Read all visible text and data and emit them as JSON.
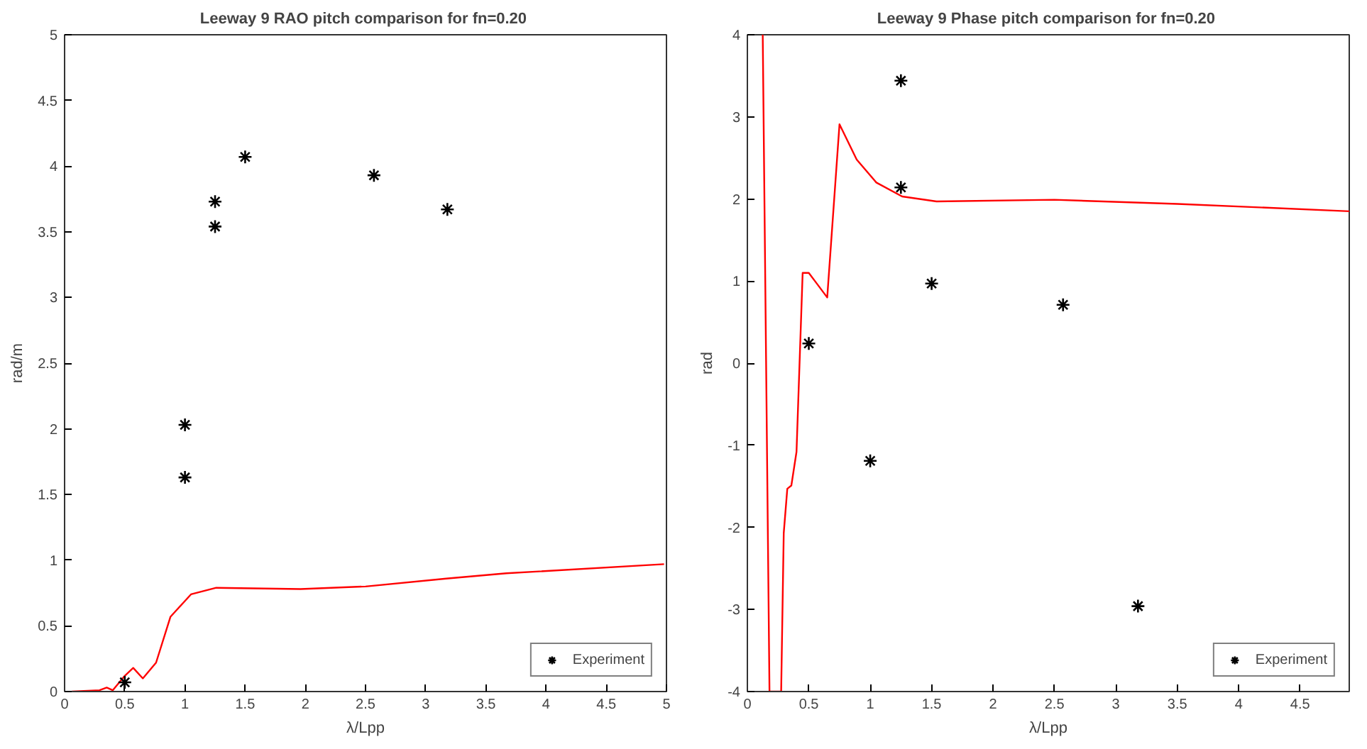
{
  "chart_data": [
    {
      "type": "line",
      "title": "Leeway 9  RAO pitch comparison for fn=0.20",
      "xlabel": "λ/Lpp",
      "ylabel": "rad/m",
      "xlim": [
        0,
        5
      ],
      "ylim": [
        0,
        5
      ],
      "xticks": [
        0,
        0.5,
        1,
        1.5,
        2,
        2.5,
        3,
        3.5,
        4,
        4.5,
        5
      ],
      "yticks": [
        0,
        0.5,
        1,
        1.5,
        2,
        2.5,
        3,
        3.5,
        4,
        4.5,
        5
      ],
      "grid": false,
      "legend": "bottom right",
      "series": [
        {
          "color": "#ff0000",
          "line_style": "solid",
          "x": [
            0.06,
            0.29,
            0.35,
            0.4,
            0.5,
            0.57,
            0.65,
            0.76,
            0.88,
            1.05,
            1.26,
            1.96,
            2.5,
            3.17,
            3.67,
            4.98
          ],
          "values": [
            0,
            0.01,
            0.03,
            0.01,
            0.12,
            0.18,
            0.1,
            0.22,
            0.57,
            0.74,
            0.79,
            0.78,
            0.8,
            0.86,
            0.9,
            0.97
          ]
        },
        {
          "type": "scatter",
          "name": "Experiment",
          "color": "#000000",
          "marker": "cross",
          "x": [
            0.5,
            1,
            1,
            1.25,
            1.25,
            1.5,
            2.57,
            3.18
          ],
          "values": [
            0.07,
            2.03,
            1.63,
            3.73,
            3.54,
            4.07,
            3.93,
            3.67
          ]
        }
      ]
    },
    {
      "type": "line",
      "title": "Leeway 9  Phase pitch comparison for fn=0.20",
      "xlabel": "λ/Lpp",
      "ylabel": "rad",
      "xlim": [
        0,
        4.9
      ],
      "ylim": [
        -4,
        4
      ],
      "xticks": [
        0,
        0.5,
        1,
        1.5,
        2,
        2.5,
        3,
        3.5,
        4,
        4.5
      ],
      "yticks": [
        -4,
        -3,
        -2,
        -1,
        0,
        1,
        2,
        3,
        4
      ],
      "grid": false,
      "legend": "bottom right",
      "series": [
        {
          "color": "#ff0000",
          "line_style": "solid",
          "x": [
            0.125,
            0.18,
            0.275,
            0.296,
            0.325,
            0.358,
            0.4,
            0.45,
            0.5,
            0.57,
            0.65,
            0.75,
            0.89,
            1.05,
            1.26,
            1.54,
            2.5,
            3.5,
            4.9
          ],
          "values": [
            4,
            -4,
            -4,
            -2.07,
            -1.53,
            -1.49,
            -1.08,
            1.1,
            1.1,
            0.96,
            0.8,
            2.91,
            2.48,
            2.2,
            2.03,
            1.97,
            1.99,
            1.94,
            1.85
          ]
        },
        {
          "type": "scatter",
          "name": "Experiment",
          "color": "#000000",
          "marker": "cross",
          "x": [
            1.25,
            1.25,
            0.5,
            1.5,
            2.57,
            1,
            3.18
          ],
          "values": [
            3.44,
            2.14,
            0.24,
            0.97,
            0.71,
            -1.19,
            -2.96
          ]
        }
      ]
    }
  ]
}
